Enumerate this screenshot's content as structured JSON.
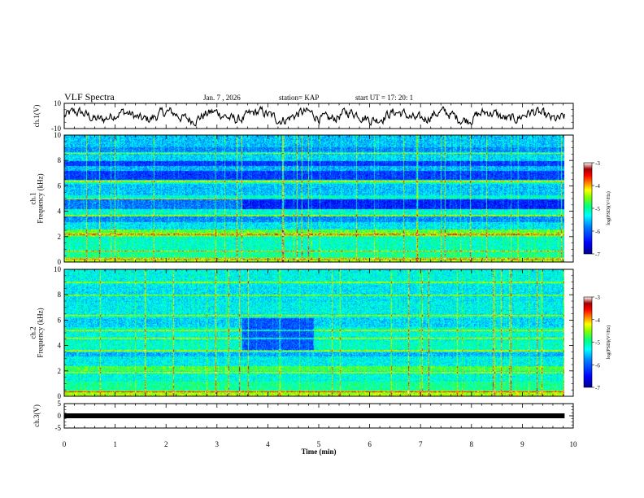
{
  "header": {
    "title": "VLF Spectra",
    "date": "Jan. 7 , 2026",
    "station": "station= KAP",
    "start": "start UT = 17: 20: 1"
  },
  "colors": {
    "background": "#ffffff",
    "axis": "#000000",
    "colormap": [
      "#00008f",
      "#0000ff",
      "#0080ff",
      "#00ffff",
      "#00ff80",
      "#80ff00",
      "#ffff00",
      "#ff8000",
      "#ff0000",
      "#800000",
      "#ffffff"
    ]
  },
  "chart_data": [
    {
      "type": "line",
      "name": "ch.1 waveform",
      "ylabel": "ch.1(V)",
      "ylim": [
        -10,
        10
      ],
      "yticks": [
        "10",
        "-10"
      ],
      "xlim": [
        0,
        10
      ],
      "x_end": 9.83,
      "trace_level": 0,
      "trace_amplitude": 5,
      "grid": false
    },
    {
      "type": "heatmap",
      "name": "ch.1 spectrogram",
      "ylabel": "ch.1\nFrequency (kHz)",
      "ylim": [
        0,
        10
      ],
      "yticks": [
        "0",
        "2",
        "4",
        "6",
        "8",
        "10"
      ],
      "xlim": [
        0,
        10
      ],
      "x_end": 9.83,
      "colorbar": {
        "label": "log(PSD)(V²/Hz)",
        "range": [
          -7,
          -3
        ],
        "ticks": [
          "-3",
          "-4",
          "-5",
          "-6",
          "-7"
        ]
      },
      "bands": [
        {
          "from": 0,
          "to": 0.3,
          "level": 0.62
        },
        {
          "from": 0.3,
          "to": 1.0,
          "level": 0.5
        },
        {
          "from": 1.0,
          "to": 2.0,
          "level": 0.46
        },
        {
          "from": 2.0,
          "to": 2.6,
          "level": 0.58
        },
        {
          "from": 2.6,
          "to": 3.2,
          "level": 0.4
        },
        {
          "from": 3.2,
          "to": 3.6,
          "level": 0.3
        },
        {
          "from": 3.6,
          "to": 4.2,
          "level": 0.44
        },
        {
          "from": 4.2,
          "to": 5.0,
          "level": 0.28
        },
        {
          "from": 5.0,
          "to": 5.3,
          "level": 0.45
        },
        {
          "from": 5.3,
          "to": 6.2,
          "level": 0.36
        },
        {
          "from": 6.2,
          "to": 6.5,
          "level": 0.46
        },
        {
          "from": 6.5,
          "to": 7.2,
          "level": 0.2
        },
        {
          "from": 7.2,
          "to": 7.6,
          "level": 0.34
        },
        {
          "from": 7.6,
          "to": 8.0,
          "level": 0.2
        },
        {
          "from": 8.0,
          "to": 8.6,
          "level": 0.38
        },
        {
          "from": 8.6,
          "to": 9.1,
          "level": 0.3
        },
        {
          "from": 9.1,
          "to": 10,
          "level": 0.36
        }
      ],
      "lines_khz": [
        0.3,
        0.9,
        2.2,
        3.7,
        5.0,
        6.4,
        8.6
      ],
      "quiet_region": {
        "t_from": 3.5,
        "t_to": 10,
        "f_from": 4.2,
        "f_to": 5.0,
        "level": 0.16
      }
    },
    {
      "type": "heatmap",
      "name": "ch.2 spectrogram",
      "ylabel": "ch.2\nFrequency (kHz)",
      "ylim": [
        0,
        10
      ],
      "yticks": [
        "0",
        "2",
        "4",
        "6",
        "8",
        "10"
      ],
      "xlim": [
        0,
        10
      ],
      "x_end": 9.83,
      "colorbar": {
        "label": "log(PSD)(V²/Hz)",
        "range": [
          -7,
          -3
        ],
        "ticks": [
          "-3",
          "-4",
          "-5",
          "-6",
          "-7"
        ]
      },
      "bands": [
        {
          "from": 0,
          "to": 0.4,
          "level": 0.64
        },
        {
          "from": 0.4,
          "to": 1.2,
          "level": 0.5
        },
        {
          "from": 1.2,
          "to": 2.0,
          "level": 0.44
        },
        {
          "from": 2.0,
          "to": 2.4,
          "level": 0.56
        },
        {
          "from": 2.4,
          "to": 3.2,
          "level": 0.42
        },
        {
          "from": 3.2,
          "to": 3.5,
          "level": 0.34
        },
        {
          "from": 3.5,
          "to": 4.3,
          "level": 0.46
        },
        {
          "from": 4.3,
          "to": 5.5,
          "level": 0.44
        },
        {
          "from": 5.5,
          "to": 6.2,
          "level": 0.38
        },
        {
          "from": 6.2,
          "to": 7.5,
          "level": 0.42
        },
        {
          "from": 7.5,
          "to": 8.8,
          "level": 0.4
        },
        {
          "from": 8.8,
          "to": 10,
          "level": 0.43
        }
      ],
      "lines_khz": [
        0.4,
        1.9,
        3.6,
        4.6,
        5.2,
        6.4,
        8.0,
        9.0
      ],
      "quiet_region": {
        "t_from": 3.5,
        "t_to": 4.9,
        "f_from": 3.6,
        "f_to": 6.2,
        "level": 0.24
      }
    },
    {
      "type": "line",
      "name": "ch.3 waveform",
      "ylabel": "ch.3(V)",
      "ylim": [
        -5,
        5
      ],
      "yticks": [
        "5",
        "0",
        "-5"
      ],
      "xlim": [
        0,
        10
      ],
      "x_end": 9.83,
      "trace_level": 0,
      "trace_thickness": 1.2,
      "grid": false
    }
  ],
  "x_axis": {
    "label": "Time (min)",
    "ticks": [
      "0",
      "1",
      "2",
      "3",
      "4",
      "5",
      "6",
      "7",
      "8",
      "9",
      "10"
    ],
    "range": [
      0,
      10
    ]
  }
}
